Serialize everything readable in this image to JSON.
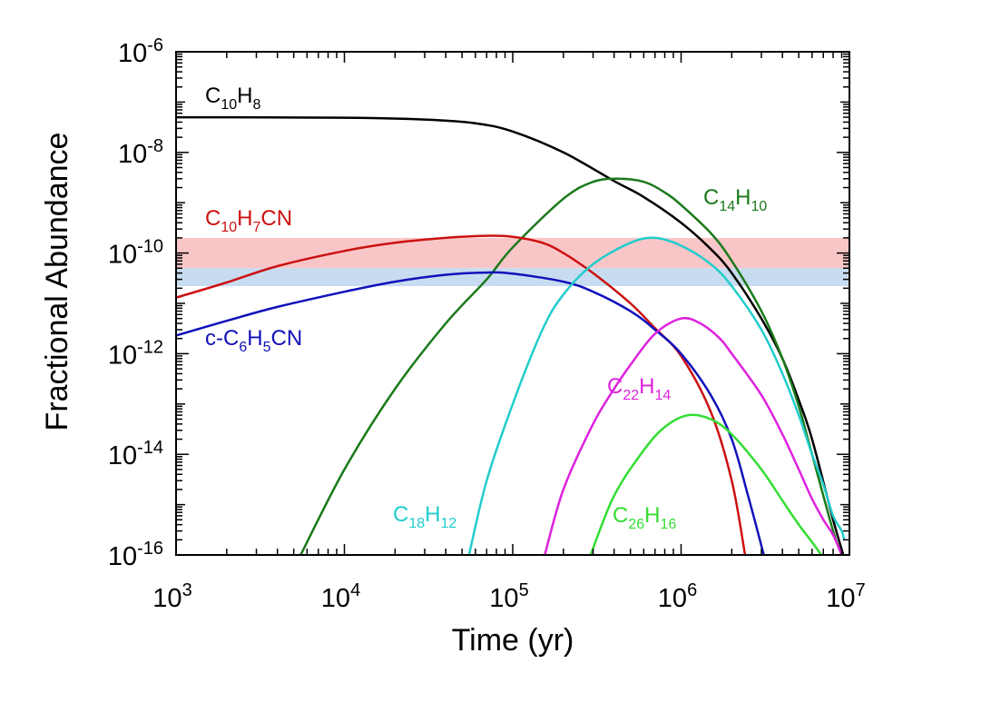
{
  "chart_data": {
    "type": "line",
    "xlabel": "Time (yr)",
    "ylabel": "Fractional Abundance",
    "x_scale": "log",
    "y_scale": "log",
    "xlim": [
      1000,
      10000000
    ],
    "ylim": [
      1e-16,
      1e-06
    ],
    "x_ticks": [
      {
        "base": "10",
        "exp": "3"
      },
      {
        "base": "10",
        "exp": "4"
      },
      {
        "base": "10",
        "exp": "5"
      },
      {
        "base": "10",
        "exp": "6"
      },
      {
        "base": "10",
        "exp": "7"
      }
    ],
    "y_ticks": [
      {
        "base": "10",
        "exp": "-6"
      },
      {
        "base": "10",
        "exp": "-8"
      },
      {
        "base": "10",
        "exp": "-10"
      },
      {
        "base": "10",
        "exp": "-12"
      },
      {
        "base": "10",
        "exp": "-14"
      },
      {
        "base": "10",
        "exp": "-16"
      }
    ],
    "bands": [
      {
        "y_range": [
          5e-11,
          2e-10
        ],
        "color": "#f9c6c8"
      },
      {
        "y_range": [
          2.2e-11,
          5e-11
        ],
        "color": "#c7dcf0"
      }
    ],
    "series": [
      {
        "name": "C10H8",
        "color": "#000000",
        "label_parts": [
          [
            "C",
            ""
          ],
          [
            "10",
            "sub"
          ],
          [
            "H",
            ""
          ],
          [
            "8",
            "sub"
          ]
        ],
        "points": [
          [
            1000,
            5e-08
          ],
          [
            10000,
            4.9e-08
          ],
          [
            30000,
            4.5e-08
          ],
          [
            60000,
            3.8e-08
          ],
          [
            100000,
            2.6e-08
          ],
          [
            200000,
            1e-08
          ],
          [
            400000,
            2.7e-09
          ],
          [
            600000,
            1.3e-09
          ],
          [
            1000000,
            4e-10
          ],
          [
            1500000,
            1.2e-10
          ],
          [
            2000000,
            4e-11
          ],
          [
            3000000,
            5e-12
          ],
          [
            4000000,
            8e-13
          ],
          [
            5000000,
            1.2e-13
          ],
          [
            6000000,
            2e-14
          ],
          [
            8000000,
            5e-16
          ],
          [
            9200000,
            1e-16
          ]
        ]
      },
      {
        "name": "C14H10",
        "color": "#1a7a1a",
        "label_parts": [
          [
            "C",
            ""
          ],
          [
            "14",
            "sub"
          ],
          [
            "H",
            ""
          ],
          [
            "10",
            "sub"
          ]
        ],
        "points": [
          [
            5500,
            1e-16
          ],
          [
            10000,
            5e-15
          ],
          [
            20000,
            2e-13
          ],
          [
            40000,
            4e-12
          ],
          [
            70000,
            3e-11
          ],
          [
            100000,
            1.3e-10
          ],
          [
            200000,
            1.2e-09
          ],
          [
            300000,
            2.6e-09
          ],
          [
            420000,
            3e-09
          ],
          [
            600000,
            2.6e-09
          ],
          [
            800000,
            1.6e-09
          ],
          [
            1000000,
            9e-10
          ],
          [
            1500000,
            2.5e-10
          ],
          [
            2000000,
            7e-11
          ],
          [
            3000000,
            7e-12
          ],
          [
            4000000,
            8e-13
          ],
          [
            5000000,
            9e-14
          ],
          [
            6000000,
            1e-14
          ],
          [
            8000000,
            3e-16
          ],
          [
            9000000,
            1e-16
          ]
        ]
      },
      {
        "name": "C10H7CN",
        "color": "#cc1111",
        "label_parts": [
          [
            "C",
            ""
          ],
          [
            "10",
            "sub"
          ],
          [
            "H",
            ""
          ],
          [
            "7",
            "sub"
          ],
          [
            "CN",
            ""
          ]
        ],
        "points": [
          [
            1000,
            1.3e-11
          ],
          [
            2000,
            2.6e-11
          ],
          [
            4000,
            5.5e-11
          ],
          [
            10000,
            1.1e-10
          ],
          [
            20000,
            1.6e-10
          ],
          [
            40000,
            2e-10
          ],
          [
            70000,
            2.2e-10
          ],
          [
            100000,
            2.1e-10
          ],
          [
            150000,
            1.6e-10
          ],
          [
            200000,
            1e-10
          ],
          [
            300000,
            4e-11
          ],
          [
            500000,
            1e-11
          ],
          [
            700000,
            3.2e-12
          ],
          [
            1000000,
            9e-13
          ],
          [
            1500000,
            7e-14
          ],
          [
            2000000,
            3e-15
          ],
          [
            2400000,
            1e-16
          ]
        ]
      },
      {
        "name": "c-C6H5CN",
        "color": "#1111bb",
        "label_parts": [
          [
            "c-C",
            ""
          ],
          [
            "6",
            "sub"
          ],
          [
            "H",
            ""
          ],
          [
            "5",
            "sub"
          ],
          [
            "CN",
            ""
          ]
        ],
        "points": [
          [
            1000,
            2.3e-12
          ],
          [
            2000,
            4.5e-12
          ],
          [
            4000,
            8.5e-12
          ],
          [
            10000,
            1.7e-11
          ],
          [
            20000,
            2.7e-11
          ],
          [
            40000,
            3.7e-11
          ],
          [
            70000,
            4.1e-11
          ],
          [
            100000,
            3.9e-11
          ],
          [
            200000,
            2.7e-11
          ],
          [
            300000,
            1.7e-11
          ],
          [
            500000,
            7e-12
          ],
          [
            700000,
            3e-12
          ],
          [
            1000000,
            1e-12
          ],
          [
            1500000,
            1.5e-13
          ],
          [
            2000000,
            2e-14
          ],
          [
            2500000,
            1.5e-15
          ],
          [
            3100000,
            1e-16
          ]
        ]
      },
      {
        "name": "C18H12",
        "color": "#22cccc",
        "label_parts": [
          [
            "C",
            ""
          ],
          [
            "18",
            "sub"
          ],
          [
            "H",
            ""
          ],
          [
            "12",
            "sub"
          ]
        ],
        "points": [
          [
            55000,
            1e-16
          ],
          [
            70000,
            3e-15
          ],
          [
            100000,
            1e-13
          ],
          [
            150000,
            3e-12
          ],
          [
            200000,
            1.5e-11
          ],
          [
            300000,
            6e-11
          ],
          [
            500000,
            1.6e-10
          ],
          [
            700000,
            2e-10
          ],
          [
            1000000,
            1.4e-10
          ],
          [
            1500000,
            6e-11
          ],
          [
            2000000,
            2.2e-11
          ],
          [
            3000000,
            3e-12
          ],
          [
            4000000,
            4e-13
          ],
          [
            5000000,
            6e-14
          ],
          [
            6000000,
            1e-14
          ],
          [
            7000000,
            2.5e-15
          ],
          [
            8000000,
            6e-16
          ],
          [
            9000000,
            3e-16
          ],
          [
            9300000,
            2e-16
          ]
        ]
      },
      {
        "name": "C22H14",
        "color": "#dd22dd",
        "label_parts": [
          [
            "C",
            ""
          ],
          [
            "22",
            "sub"
          ],
          [
            "H",
            ""
          ],
          [
            "14",
            "sub"
          ]
        ],
        "points": [
          [
            155000,
            1e-16
          ],
          [
            200000,
            2e-15
          ],
          [
            300000,
            4e-14
          ],
          [
            400000,
            2e-13
          ],
          [
            500000,
            6e-13
          ],
          [
            700000,
            2.5e-12
          ],
          [
            1000000,
            5e-12
          ],
          [
            1300000,
            4e-12
          ],
          [
            1700000,
            2e-12
          ],
          [
            2000000,
            1e-12
          ],
          [
            3000000,
            1.5e-13
          ],
          [
            4000000,
            2.5e-14
          ],
          [
            5000000,
            5e-15
          ],
          [
            6000000,
            1.3e-15
          ],
          [
            7000000,
            5e-16
          ],
          [
            8000000,
            2.5e-16
          ],
          [
            9000000,
            1e-16
          ]
        ]
      },
      {
        "name": "C26H16",
        "color": "#33dd33",
        "label_parts": [
          [
            "C",
            ""
          ],
          [
            "26",
            "sub"
          ],
          [
            "H",
            ""
          ],
          [
            "16",
            "sub"
          ]
        ],
        "points": [
          [
            290000,
            1e-16
          ],
          [
            400000,
            1.5e-15
          ],
          [
            600000,
            1.2e-14
          ],
          [
            800000,
            3.5e-14
          ],
          [
            1100000,
            6e-14
          ],
          [
            1500000,
            5e-14
          ],
          [
            2000000,
            2.5e-14
          ],
          [
            3000000,
            5e-15
          ],
          [
            4000000,
            1.2e-15
          ],
          [
            5000000,
            4e-16
          ],
          [
            6000000,
            1.8e-16
          ],
          [
            6800000,
            1e-16
          ]
        ]
      }
    ]
  }
}
